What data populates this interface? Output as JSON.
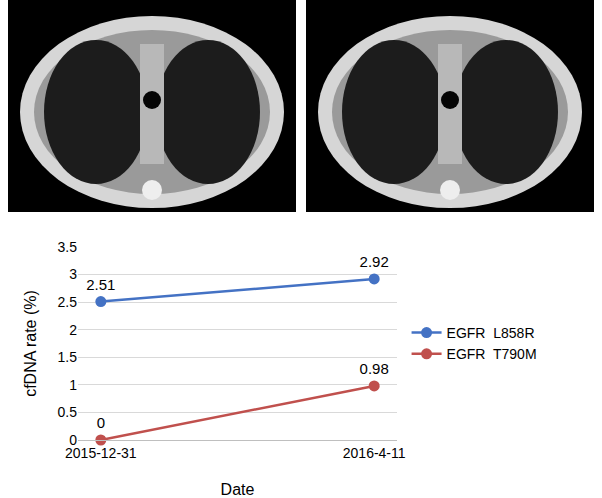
{
  "chart_data": {
    "type": "line",
    "x_label": "Date",
    "y_label": "cfDNA rate (%)",
    "categories": [
      "2015-12-31",
      "2016-4-11"
    ],
    "series": [
      {
        "name": "EGFR  L858R",
        "color": "#4472c4",
        "marker": "circle",
        "values": [
          2.51,
          2.92
        ]
      },
      {
        "name": "EGFR  T790M",
        "color": "#c0504d",
        "marker": "circle",
        "values": [
          0,
          0.98
        ]
      }
    ],
    "ylim": [
      0,
      3.5
    ],
    "yticks": [
      0,
      0.5,
      1,
      1.5,
      2,
      2.5,
      3,
      3.5
    ],
    "grid": true,
    "legend": "right",
    "data_labels": true
  }
}
